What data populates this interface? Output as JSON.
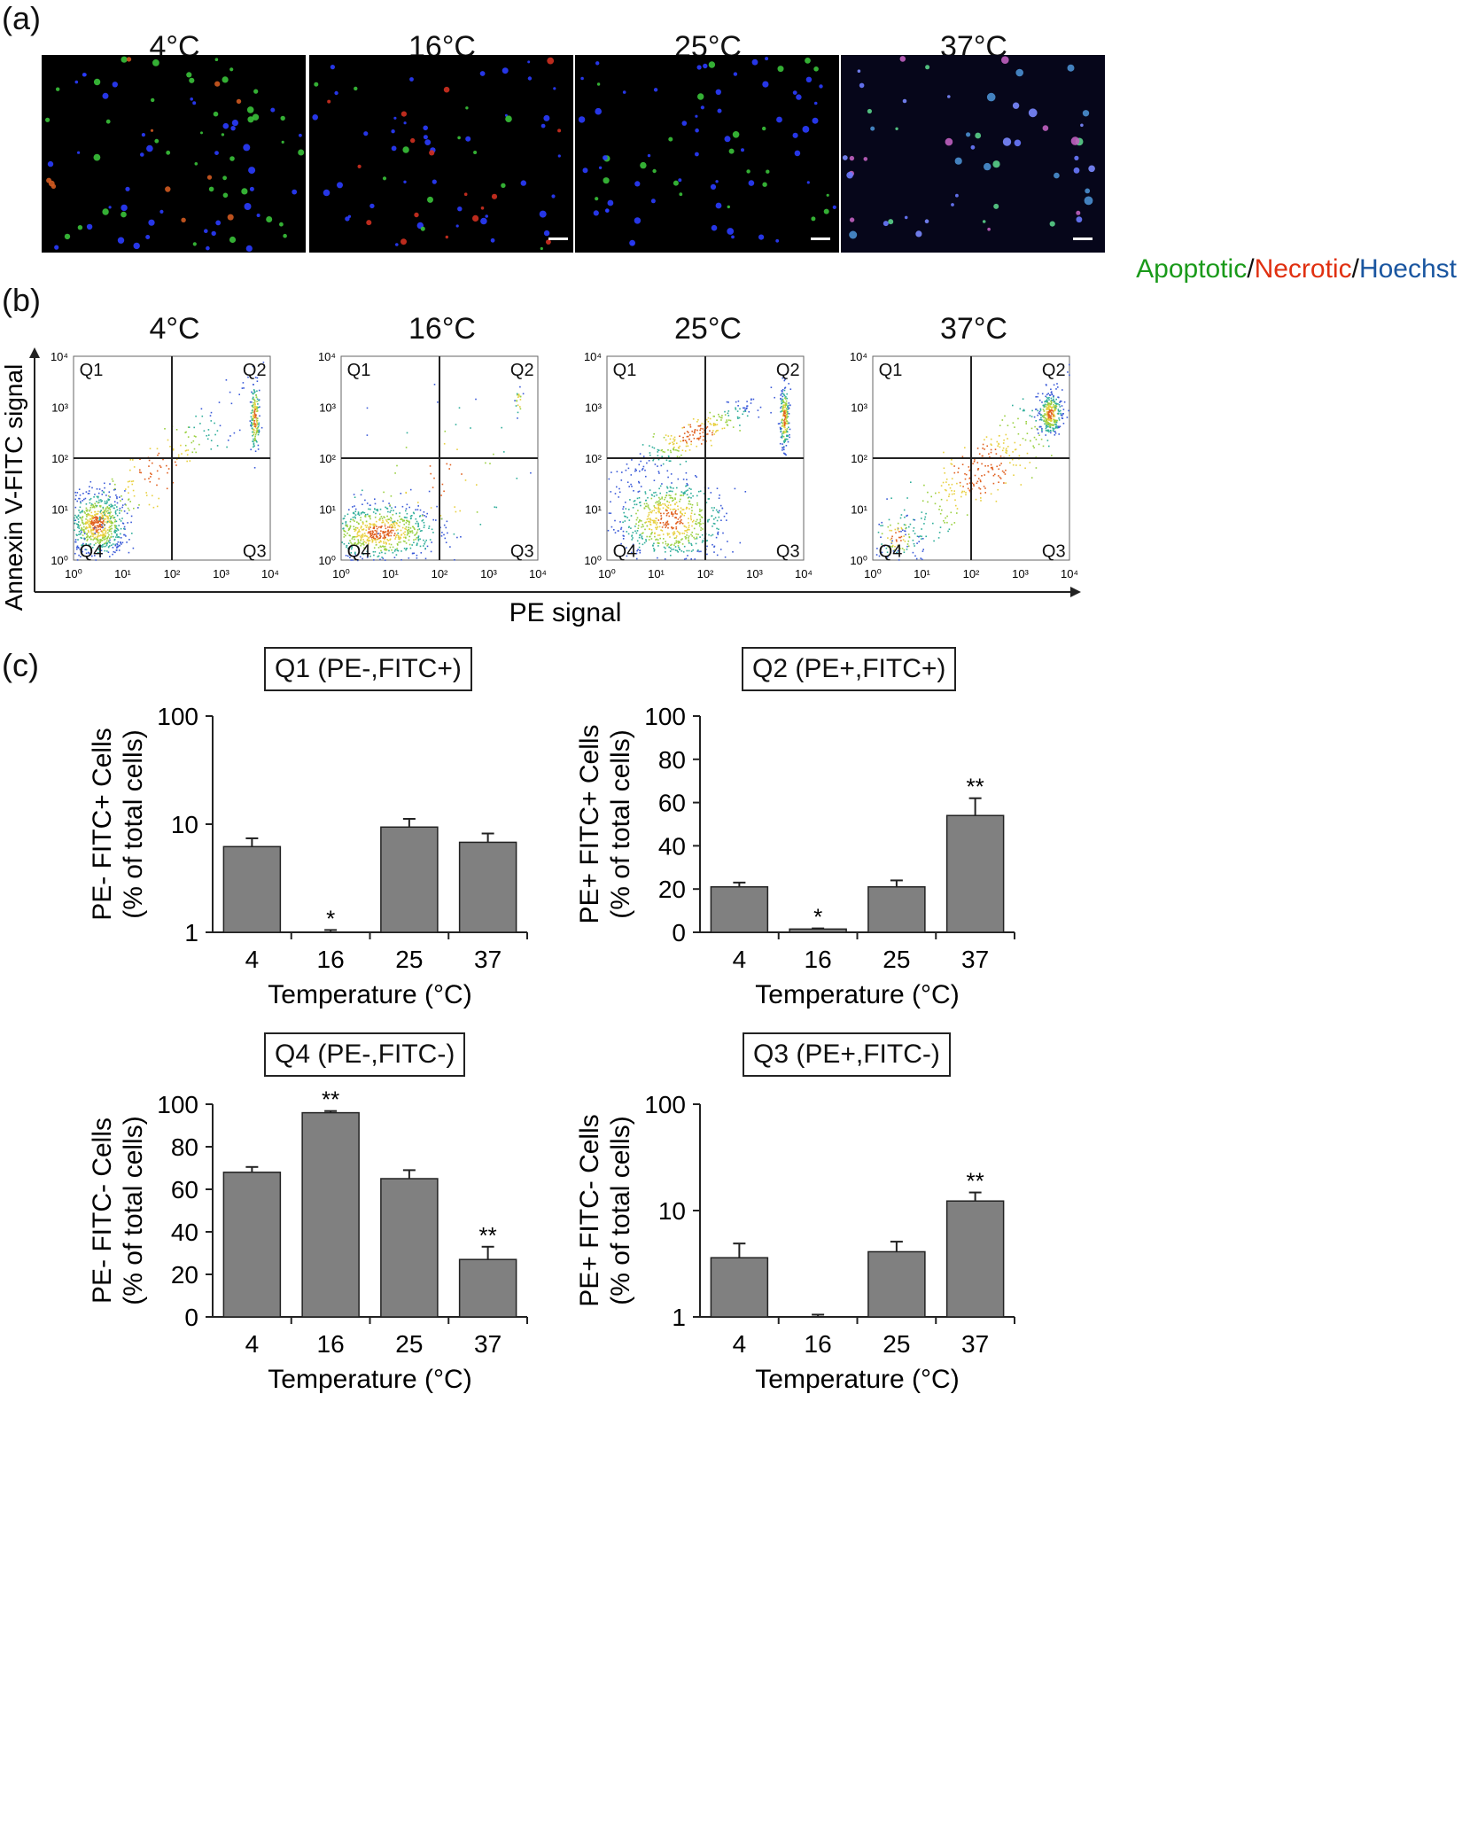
{
  "panel_a": {
    "label": "(a)",
    "temps": [
      "4°C",
      "16°C",
      "25°C",
      "37°C"
    ],
    "legend": {
      "apoptotic": "Apoptotic",
      "sep1": "/",
      "necrotic": "Necrotic",
      "sep2": "/",
      "hoechst": "Hoechst",
      "colors": {
        "apoptotic": "#1a9a1a",
        "necrotic": "#e03010",
        "hoechst": "#1a56a0"
      }
    }
  },
  "panel_b": {
    "label": "(b)",
    "temps": [
      "4°C",
      "16°C",
      "25°C",
      "37°C"
    ],
    "ylabel": "Annexin V-FITC signal",
    "xlabel": "PE signal",
    "quadrants": [
      "Q1",
      "Q2",
      "Q3",
      "Q4"
    ],
    "yticks": [
      "10⁰",
      "10¹",
      "10²",
      "10³",
      "10⁴"
    ],
    "xticks": [
      "10⁰",
      "10¹",
      "10²",
      "10³",
      "10⁴"
    ]
  },
  "panel_c": {
    "label": "(c)",
    "xlabel": "Temperature (°C)"
  },
  "chart_data": [
    {
      "type": "bar",
      "title": "Q1 (PE-,FITC+)",
      "ylabel_line1": "PE- FITC+ Cells",
      "ylabel_line2": "(% of total cells)",
      "xlabel": "Temperature (°C)",
      "categories": [
        "4",
        "16",
        "25",
        "37"
      ],
      "values": [
        6.2,
        1.0,
        9.4,
        6.8
      ],
      "errors": [
        1.2,
        0.05,
        1.8,
        1.4
      ],
      "significance": [
        "",
        "*",
        "",
        ""
      ],
      "yscale": "log",
      "ylim": [
        1,
        100
      ],
      "yticks": [
        "1",
        "10",
        "100"
      ],
      "color": "#808080"
    },
    {
      "type": "bar",
      "title": "Q2 (PE+,FITC+)",
      "ylabel_line1": "PE+ FITC+ Cells",
      "ylabel_line2": "(% of total cells)",
      "xlabel": "Temperature (°C)",
      "categories": [
        "4",
        "16",
        "25",
        "37"
      ],
      "values": [
        21,
        1.5,
        21,
        54
      ],
      "errors": [
        2,
        0.3,
        3,
        8
      ],
      "significance": [
        "",
        "*",
        "",
        "**"
      ],
      "yscale": "linear",
      "ylim": [
        0,
        100
      ],
      "yticks": [
        "0",
        "20",
        "40",
        "60",
        "80",
        "100"
      ],
      "color": "#808080"
    },
    {
      "type": "bar",
      "title": "Q4 (PE-,FITC-)",
      "ylabel_line1": "PE- FITC- Cells",
      "ylabel_line2": "(% of total cells)",
      "xlabel": "Temperature (°C)",
      "categories": [
        "4",
        "16",
        "25",
        "37"
      ],
      "values": [
        68,
        96,
        65,
        27
      ],
      "errors": [
        2.5,
        0.8,
        4,
        6
      ],
      "significance": [
        "",
        "**",
        "",
        "**"
      ],
      "yscale": "linear",
      "ylim": [
        0,
        100
      ],
      "yticks": [
        "0",
        "20",
        "40",
        "60",
        "80",
        "100"
      ],
      "color": "#808080"
    },
    {
      "type": "bar",
      "title": "Q3 (PE+,FITC-)",
      "ylabel_line1": "PE+ FITC- Cells",
      "ylabel_line2": "(% of total cells)",
      "xlabel": "Temperature (°C)",
      "categories": [
        "4",
        "16",
        "25",
        "37"
      ],
      "values": [
        3.6,
        1.0,
        4.1,
        12.3
      ],
      "errors": [
        1.3,
        0.05,
        1.0,
        2.5
      ],
      "significance": [
        "",
        "",
        "",
        "**"
      ],
      "yscale": "log",
      "ylim": [
        1,
        100
      ],
      "yticks": [
        "1",
        "10",
        "100"
      ],
      "color": "#808080"
    }
  ]
}
